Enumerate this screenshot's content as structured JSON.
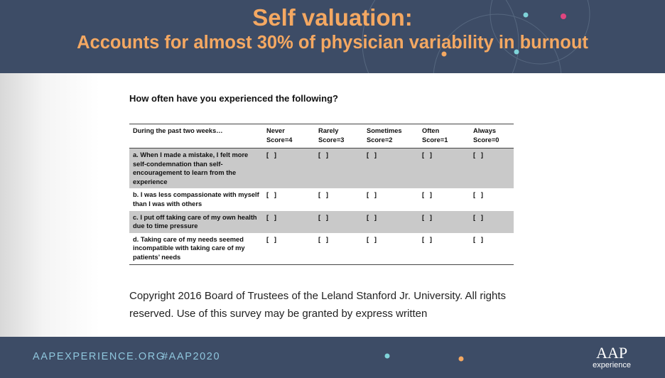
{
  "header": {
    "title": "Self valuation:",
    "subtitle": "Accounts for almost 30% of physician variability in burnout"
  },
  "question": "How often have you experienced the following?",
  "table": {
    "columns": [
      [
        "During the past two weeks…"
      ],
      [
        "Never",
        "Score=4"
      ],
      [
        "Rarely",
        "Score=3"
      ],
      [
        "Sometimes",
        "Score=2"
      ],
      [
        "Often",
        "Score=1"
      ],
      [
        "Always",
        "Score=0"
      ]
    ],
    "checkbox": "[   ]",
    "rows": [
      "a. When I made a mistake, I felt more self-condemnation than self-encouragement to learn from the experience",
      "b. I was less compassionate with myself than I was with others",
      "c. I put off taking care of my own health due to time pressure",
      "d. Taking care of my needs seemed incompatible with taking care of my patients’ needs"
    ]
  },
  "copyright": "Copyright 2016 Board of Trustees of the Leland Stanford Jr. University. All rights reserved. Use of this survey may be granted by express written",
  "footer": {
    "url": "AAPEXPERIENCE.ORG",
    "hashtag": "#AAP2020",
    "logo_brand": "AAP",
    "logo_sub": "experience"
  }
}
